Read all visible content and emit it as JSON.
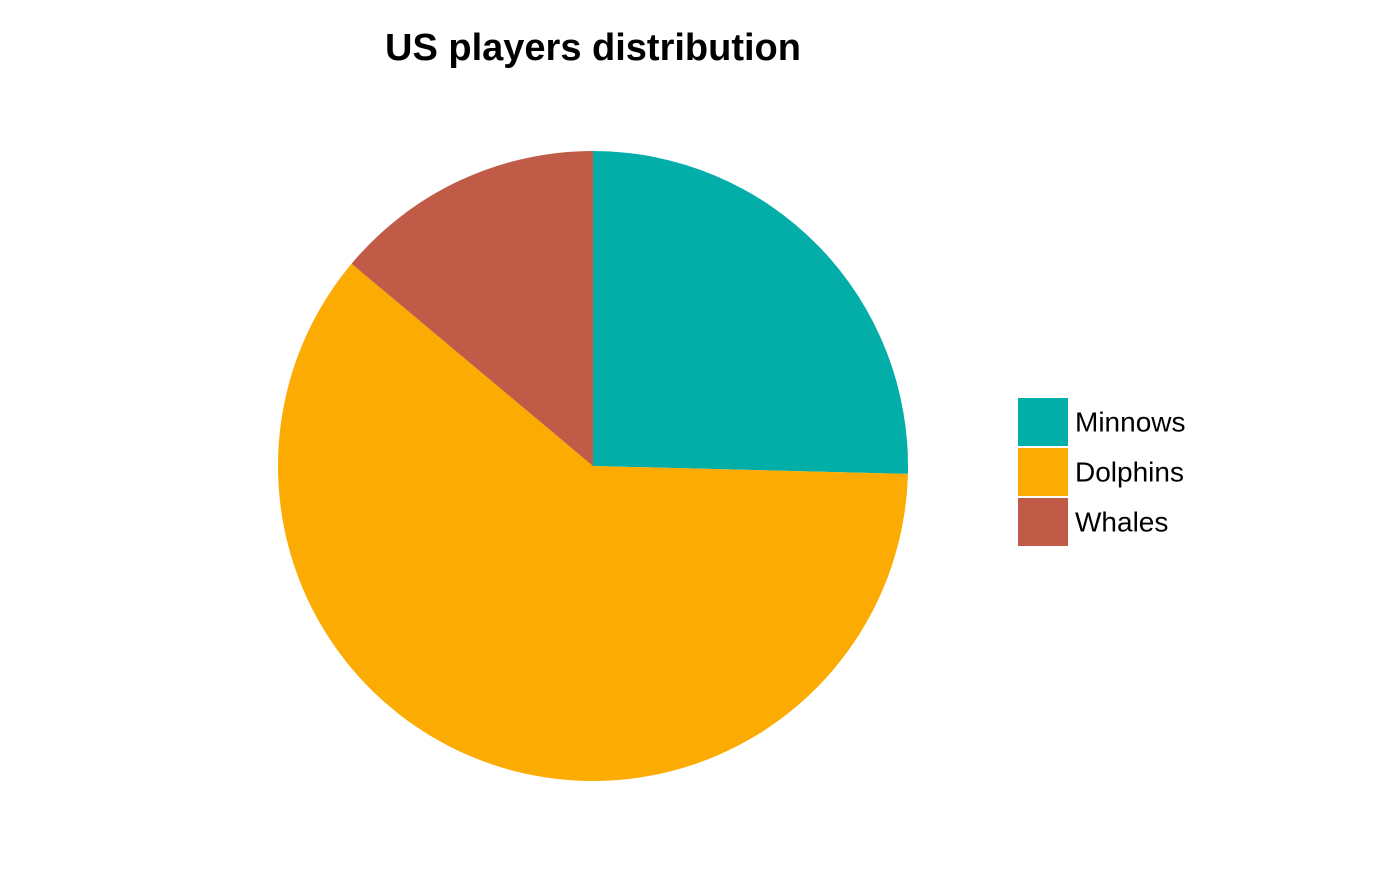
{
  "chart_data": {
    "type": "pie",
    "title": "US players distribution",
    "categories": [
      "Minnows",
      "Dolphins",
      "Whales"
    ],
    "values": [
      25.4,
      60.7,
      13.9
    ],
    "colors": [
      "#03aea8",
      "#fcab02",
      "#c05b47"
    ],
    "legend": "right"
  }
}
